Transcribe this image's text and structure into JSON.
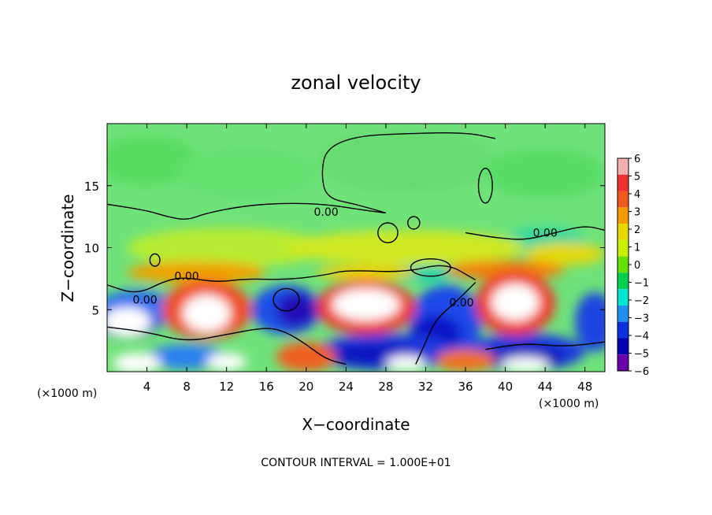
{
  "chart_data": {
    "type": "heatmap",
    "title": "zonal velocity",
    "xlabel": "X−coordinate",
    "ylabel": "Z−coordinate",
    "x_unit": "(×1000 m)",
    "y_unit": "(×1000 m)",
    "xlim": [
      0,
      50
    ],
    "ylim": [
      0,
      20
    ],
    "xticks": [
      "4",
      "8",
      "12",
      "16",
      "20",
      "24",
      "28",
      "32",
      "36",
      "40",
      "44",
      "48"
    ],
    "yticks": [
      "5",
      "10",
      "15"
    ],
    "colorbar": {
      "levels": [
        "6",
        "5",
        "4",
        "3",
        "2",
        "1",
        "0",
        "−1",
        "−2",
        "−3",
        "−4",
        "−5",
        "−6"
      ],
      "colors": [
        "#f4b0b0",
        "#ee3030",
        "#f05a20",
        "#f79a00",
        "#e8d800",
        "#c8f000",
        "#66e000",
        "#00d050",
        "#00e8d0",
        "#2090f0",
        "#0a30e0",
        "#0000b0",
        "#6a00a8"
      ]
    },
    "contour_labels": [
      "0.00",
      "0.00",
      "0.00",
      "0.00",
      "0.00"
    ],
    "footer": "CONTOUR INTERVAL = 1.000E+01",
    "field": {
      "background": "#6fe27a",
      "blobs": [
        {
          "x": 4,
          "z": 17,
          "rx": 5,
          "rz": 2,
          "c": "#59dc60"
        },
        {
          "x": 14,
          "z": 16,
          "rx": 7,
          "rz": 2,
          "c": "#63e070"
        },
        {
          "x": 30,
          "z": 17,
          "rx": 9,
          "rz": 2.5,
          "c": "#66dc70"
        },
        {
          "x": 44,
          "z": 16,
          "rx": 6,
          "rz": 2,
          "c": "#59dc66"
        },
        {
          "x": 44,
          "z": 10.5,
          "rx": 4,
          "rz": 1.2,
          "c": "#30d8a0"
        },
        {
          "x": 32,
          "z": 8,
          "rx": 3,
          "rz": 0.8,
          "c": "#20d0a8"
        },
        {
          "x": 12,
          "z": 10,
          "rx": 10,
          "rz": 1.6,
          "c": "#b8ec30"
        },
        {
          "x": 30,
          "z": 10,
          "rx": 12,
          "rz": 1.4,
          "c": "#d0e820"
        },
        {
          "x": 46,
          "z": 9.5,
          "rx": 4,
          "rz": 0.9,
          "c": "#e4d810"
        },
        {
          "x": 9,
          "z": 8,
          "rx": 7,
          "rz": 0.9,
          "c": "#f0a000"
        },
        {
          "x": 40,
          "z": 8.2,
          "rx": 6,
          "rz": 0.8,
          "c": "#f08010"
        },
        {
          "x": 26,
          "z": 8,
          "rx": 5,
          "rz": 0.6,
          "c": "#eecc10"
        },
        {
          "x": 3,
          "z": 5,
          "rx": 4,
          "rz": 1.6,
          "c": "#2a6ef0"
        },
        {
          "x": 2,
          "z": 3.8,
          "rx": 3,
          "rz": 1.1,
          "c": "#0818c8"
        },
        {
          "x": 18,
          "z": 5,
          "rx": 3.5,
          "rz": 2,
          "c": "#1a50e8"
        },
        {
          "x": 19,
          "z": 5,
          "rx": 2,
          "rz": 1.4,
          "c": "#2010b8"
        },
        {
          "x": 34,
          "z": 4,
          "rx": 3.6,
          "rz": 3,
          "c": "#1c48e8"
        },
        {
          "x": 33,
          "z": 3,
          "rx": 2.6,
          "rz": 1.6,
          "c": "#0818c8"
        },
        {
          "x": 28,
          "z": 1.6,
          "rx": 7,
          "rz": 1.5,
          "c": "#1a3ae0"
        },
        {
          "x": 27,
          "z": 1.4,
          "rx": 5,
          "rz": 0.9,
          "c": "#0a18c0"
        },
        {
          "x": 42,
          "z": 1.6,
          "rx": 6,
          "rz": 1.5,
          "c": "#1a3ae0"
        },
        {
          "x": 42,
          "z": 1.2,
          "rx": 4,
          "rz": 0.9,
          "c": "#0a18b8"
        },
        {
          "x": 49,
          "z": 4,
          "rx": 2,
          "rz": 2.4,
          "c": "#1a44e0"
        },
        {
          "x": 8,
          "z": 1.2,
          "rx": 4,
          "rz": 1,
          "c": "#2a80f0"
        },
        {
          "x": 10,
          "z": 5,
          "rx": 4.5,
          "rz": 2.4,
          "c": "#f05020"
        },
        {
          "x": 26,
          "z": 5.2,
          "rx": 5,
          "rz": 2.2,
          "c": "#ee3a28"
        },
        {
          "x": 41,
          "z": 5.5,
          "rx": 4,
          "rz": 2.6,
          "c": "#ee3a28"
        },
        {
          "x": 20,
          "z": 1.2,
          "rx": 3,
          "rz": 1.2,
          "c": "#f06020"
        },
        {
          "x": 36,
          "z": 0.9,
          "rx": 3,
          "rz": 0.9,
          "c": "#f07020"
        },
        {
          "x": 2,
          "z": 4,
          "rx": 2.4,
          "rz": 1.2,
          "c": "#ffffff"
        },
        {
          "x": 10,
          "z": 4.7,
          "rx": 2.4,
          "rz": 1.5,
          "c": "#ffffff"
        },
        {
          "x": 26,
          "z": 5.4,
          "rx": 3.4,
          "rz": 1.3,
          "c": "#ffffff"
        },
        {
          "x": 41,
          "z": 5.6,
          "rx": 2.4,
          "rz": 1.5,
          "c": "#ffffff"
        },
        {
          "x": 3,
          "z": 0.7,
          "rx": 2.4,
          "rz": 0.8,
          "c": "#ffffff"
        },
        {
          "x": 12,
          "z": 0.8,
          "rx": 2,
          "rz": 0.7,
          "c": "#ffffff"
        },
        {
          "x": 42,
          "z": 0.6,
          "rx": 2.4,
          "rz": 0.6,
          "c": "#ffffff"
        },
        {
          "x": 30,
          "z": 0.7,
          "rx": 2,
          "rz": 0.6,
          "c": "#ffffff"
        }
      ],
      "zero_contours": [
        [
          [
            0,
            13.5
          ],
          [
            4,
            13
          ],
          [
            6,
            12.5
          ],
          [
            8,
            12.2
          ],
          [
            10,
            12.8
          ],
          [
            14,
            13.4
          ],
          [
            18,
            13.6
          ],
          [
            22,
            13.5
          ],
          [
            26,
            13
          ],
          [
            28,
            12.8
          ]
        ],
        [
          [
            28,
            12.8
          ],
          [
            25,
            13.5
          ],
          [
            22,
            14
          ],
          [
            21.5,
            16
          ],
          [
            22,
            18
          ],
          [
            25,
            19
          ],
          [
            30,
            19.2
          ],
          [
            36,
            19.3
          ],
          [
            39,
            18.8
          ]
        ],
        [
          [
            36,
            11.2
          ],
          [
            39,
            10.8
          ],
          [
            42,
            10.6
          ],
          [
            45,
            11.2
          ],
          [
            48,
            11.8
          ],
          [
            50,
            11.4
          ]
        ],
        [
          [
            0,
            7
          ],
          [
            3,
            6.2
          ],
          [
            6,
            7.4
          ],
          [
            8,
            7.6
          ],
          [
            11,
            7.2
          ],
          [
            14,
            7.5
          ],
          [
            18,
            7.4
          ],
          [
            22,
            7.8
          ],
          [
            24,
            8.2
          ],
          [
            30,
            8
          ],
          [
            34,
            8.8
          ],
          [
            37,
            7.4
          ]
        ],
        [
          [
            37,
            7.2
          ],
          [
            35,
            5.6
          ],
          [
            33,
            4.2
          ],
          [
            32,
            2.4
          ],
          [
            31,
            0.6
          ]
        ],
        [
          [
            0,
            3.6
          ],
          [
            4,
            3.2
          ],
          [
            8,
            2.4
          ],
          [
            12,
            3
          ],
          [
            16,
            3.6
          ],
          [
            18,
            3.2
          ],
          [
            20,
            2.2
          ],
          [
            22,
            1
          ],
          [
            24,
            0.6
          ]
        ],
        [
          [
            38,
            1.8
          ],
          [
            42,
            2.3
          ],
          [
            46,
            2
          ],
          [
            50,
            2.4
          ]
        ]
      ],
      "small_contours": [
        {
          "x": 28.2,
          "z": 11.2,
          "rx": 1,
          "rz": 0.8
        },
        {
          "x": 30.8,
          "z": 12,
          "rx": 0.6,
          "rz": 0.5
        },
        {
          "x": 38,
          "z": 15,
          "rx": 0.7,
          "rz": 1.4
        },
        {
          "x": 4.8,
          "z": 9,
          "rx": 0.5,
          "rz": 0.5
        },
        {
          "x": 18,
          "z": 5.8,
          "rx": 1.3,
          "rz": 0.9
        },
        {
          "x": 32.5,
          "z": 8.4,
          "rx": 2,
          "rz": 0.7
        }
      ],
      "label_positions": [
        [
          22,
          12.9
        ],
        [
          44,
          11.2
        ],
        [
          8,
          7.7
        ],
        [
          3.8,
          5.8
        ],
        [
          35.6,
          5.6
        ]
      ]
    }
  }
}
